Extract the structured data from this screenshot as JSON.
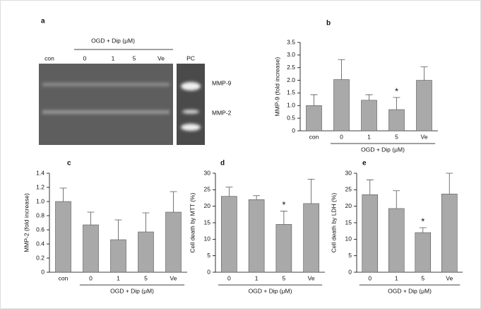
{
  "gel": {
    "panel": "a",
    "xlabel": "OGD + Dip (μM)",
    "lanes": [
      "con",
      "0",
      "1",
      "5",
      "Ve"
    ],
    "control": "PC",
    "bands": [
      "MMP-9",
      "MMP-2"
    ]
  },
  "chart_data": [
    {
      "type": "bar",
      "panel": "b",
      "ylabel": "MMP-9 (fold increase)",
      "xlabel": "OGD + Dip (μM)",
      "xlabel_span": [
        "0",
        "Ve"
      ],
      "categories": [
        "con",
        "0",
        "1",
        "5",
        "Ve"
      ],
      "values": [
        1.0,
        2.03,
        1.21,
        0.84,
        2.0
      ],
      "errors": [
        0.43,
        0.79,
        0.22,
        0.48,
        0.53
      ],
      "color": "#a9a9a9",
      "ylim": [
        0,
        3.5
      ],
      "yticks": [
        0,
        0.5,
        {
          "value": 1,
          "label": "1.0"
        },
        1.5,
        {
          "value": 2,
          "label": "2.0"
        },
        2.5,
        {
          "value": 3,
          "label": "3.0"
        },
        3.5
      ],
      "annotations": [
        {
          "text": "*",
          "category": "5"
        }
      ]
    },
    {
      "type": "bar",
      "panel": "c",
      "ylabel": "MMP-2 (fold increase)",
      "xlabel": "OGD + Dip (μM)",
      "xlabel_span": [
        "0",
        "Ve"
      ],
      "categories": [
        "con",
        "0",
        "1",
        "5",
        "Ve"
      ],
      "values": [
        1.0,
        0.67,
        0.46,
        0.57,
        0.85
      ],
      "errors": [
        0.19,
        0.18,
        0.28,
        0.27,
        0.29
      ],
      "color": "#a9a9a9",
      "ylim": [
        0,
        1.4
      ],
      "yticks": [
        0,
        0.2,
        0.4,
        0.6,
        0.8,
        {
          "value": 1,
          "label": "1.0"
        },
        1.2,
        1.4
      ],
      "annotations": []
    },
    {
      "type": "bar",
      "panel": "d",
      "ylabel": "Cell death by MTT (%)",
      "xlabel": "OGD + Dip (μM)",
      "xlabel_span": [
        "0",
        "Ve"
      ],
      "categories": [
        "0",
        "1",
        "5",
        "Ve"
      ],
      "values": [
        23,
        22,
        14.5,
        20.8
      ],
      "errors": [
        2.8,
        1.2,
        4,
        7.4
      ],
      "color": "#a9a9a9",
      "ylim": [
        0,
        30
      ],
      "yticks": [
        0,
        5,
        10,
        15,
        20,
        25,
        30
      ],
      "annotations": [
        {
          "text": "*",
          "category": "5"
        }
      ]
    },
    {
      "type": "bar",
      "panel": "e",
      "ylabel": "Cell death by LDH (%)",
      "xlabel": "OGD + Dip (μM)",
      "xlabel_span": [
        "0",
        "Ve"
      ],
      "categories": [
        "0",
        "1",
        "5",
        "Ve"
      ],
      "values": [
        23.5,
        19.3,
        12,
        23.7
      ],
      "errors": [
        4.5,
        5.4,
        1.5,
        6.3
      ],
      "color": "#a9a9a9",
      "ylim": [
        0,
        30
      ],
      "yticks": [
        0,
        5,
        10,
        15,
        20,
        25,
        30
      ],
      "annotations": [
        {
          "text": "*",
          "category": "5"
        }
      ]
    }
  ]
}
